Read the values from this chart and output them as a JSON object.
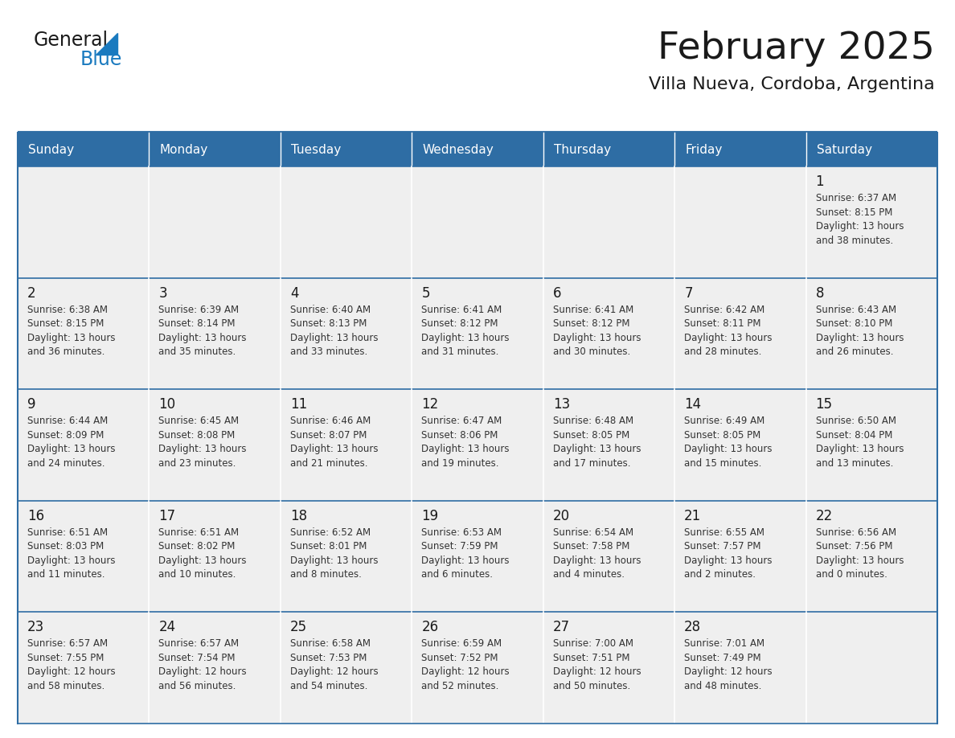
{
  "title": "February 2025",
  "subtitle": "Villa Nueva, Cordoba, Argentina",
  "header_bg": "#2E6DA4",
  "header_text": "#FFFFFF",
  "cell_bg_odd": "#EFEFEF",
  "cell_bg_even": "#FFFFFF",
  "border_color": "#2E6DA4",
  "days_of_week": [
    "Sunday",
    "Monday",
    "Tuesday",
    "Wednesday",
    "Thursday",
    "Friday",
    "Saturday"
  ],
  "weeks": [
    [
      {
        "day": "",
        "info": ""
      },
      {
        "day": "",
        "info": ""
      },
      {
        "day": "",
        "info": ""
      },
      {
        "day": "",
        "info": ""
      },
      {
        "day": "",
        "info": ""
      },
      {
        "day": "",
        "info": ""
      },
      {
        "day": "1",
        "info": "Sunrise: 6:37 AM\nSunset: 8:15 PM\nDaylight: 13 hours\nand 38 minutes."
      }
    ],
    [
      {
        "day": "2",
        "info": "Sunrise: 6:38 AM\nSunset: 8:15 PM\nDaylight: 13 hours\nand 36 minutes."
      },
      {
        "day": "3",
        "info": "Sunrise: 6:39 AM\nSunset: 8:14 PM\nDaylight: 13 hours\nand 35 minutes."
      },
      {
        "day": "4",
        "info": "Sunrise: 6:40 AM\nSunset: 8:13 PM\nDaylight: 13 hours\nand 33 minutes."
      },
      {
        "day": "5",
        "info": "Sunrise: 6:41 AM\nSunset: 8:12 PM\nDaylight: 13 hours\nand 31 minutes."
      },
      {
        "day": "6",
        "info": "Sunrise: 6:41 AM\nSunset: 8:12 PM\nDaylight: 13 hours\nand 30 minutes."
      },
      {
        "day": "7",
        "info": "Sunrise: 6:42 AM\nSunset: 8:11 PM\nDaylight: 13 hours\nand 28 minutes."
      },
      {
        "day": "8",
        "info": "Sunrise: 6:43 AM\nSunset: 8:10 PM\nDaylight: 13 hours\nand 26 minutes."
      }
    ],
    [
      {
        "day": "9",
        "info": "Sunrise: 6:44 AM\nSunset: 8:09 PM\nDaylight: 13 hours\nand 24 minutes."
      },
      {
        "day": "10",
        "info": "Sunrise: 6:45 AM\nSunset: 8:08 PM\nDaylight: 13 hours\nand 23 minutes."
      },
      {
        "day": "11",
        "info": "Sunrise: 6:46 AM\nSunset: 8:07 PM\nDaylight: 13 hours\nand 21 minutes."
      },
      {
        "day": "12",
        "info": "Sunrise: 6:47 AM\nSunset: 8:06 PM\nDaylight: 13 hours\nand 19 minutes."
      },
      {
        "day": "13",
        "info": "Sunrise: 6:48 AM\nSunset: 8:05 PM\nDaylight: 13 hours\nand 17 minutes."
      },
      {
        "day": "14",
        "info": "Sunrise: 6:49 AM\nSunset: 8:05 PM\nDaylight: 13 hours\nand 15 minutes."
      },
      {
        "day": "15",
        "info": "Sunrise: 6:50 AM\nSunset: 8:04 PM\nDaylight: 13 hours\nand 13 minutes."
      }
    ],
    [
      {
        "day": "16",
        "info": "Sunrise: 6:51 AM\nSunset: 8:03 PM\nDaylight: 13 hours\nand 11 minutes."
      },
      {
        "day": "17",
        "info": "Sunrise: 6:51 AM\nSunset: 8:02 PM\nDaylight: 13 hours\nand 10 minutes."
      },
      {
        "day": "18",
        "info": "Sunrise: 6:52 AM\nSunset: 8:01 PM\nDaylight: 13 hours\nand 8 minutes."
      },
      {
        "day": "19",
        "info": "Sunrise: 6:53 AM\nSunset: 7:59 PM\nDaylight: 13 hours\nand 6 minutes."
      },
      {
        "day": "20",
        "info": "Sunrise: 6:54 AM\nSunset: 7:58 PM\nDaylight: 13 hours\nand 4 minutes."
      },
      {
        "day": "21",
        "info": "Sunrise: 6:55 AM\nSunset: 7:57 PM\nDaylight: 13 hours\nand 2 minutes."
      },
      {
        "day": "22",
        "info": "Sunrise: 6:56 AM\nSunset: 7:56 PM\nDaylight: 13 hours\nand 0 minutes."
      }
    ],
    [
      {
        "day": "23",
        "info": "Sunrise: 6:57 AM\nSunset: 7:55 PM\nDaylight: 12 hours\nand 58 minutes."
      },
      {
        "day": "24",
        "info": "Sunrise: 6:57 AM\nSunset: 7:54 PM\nDaylight: 12 hours\nand 56 minutes."
      },
      {
        "day": "25",
        "info": "Sunrise: 6:58 AM\nSunset: 7:53 PM\nDaylight: 12 hours\nand 54 minutes."
      },
      {
        "day": "26",
        "info": "Sunrise: 6:59 AM\nSunset: 7:52 PM\nDaylight: 12 hours\nand 52 minutes."
      },
      {
        "day": "27",
        "info": "Sunrise: 7:00 AM\nSunset: 7:51 PM\nDaylight: 12 hours\nand 50 minutes."
      },
      {
        "day": "28",
        "info": "Sunrise: 7:01 AM\nSunset: 7:49 PM\nDaylight: 12 hours\nand 48 minutes."
      },
      {
        "day": "",
        "info": ""
      }
    ]
  ],
  "logo_color_general": "#1a1a1a",
  "logo_color_blue": "#1a7abf",
  "logo_triangle_color": "#1a7abf"
}
